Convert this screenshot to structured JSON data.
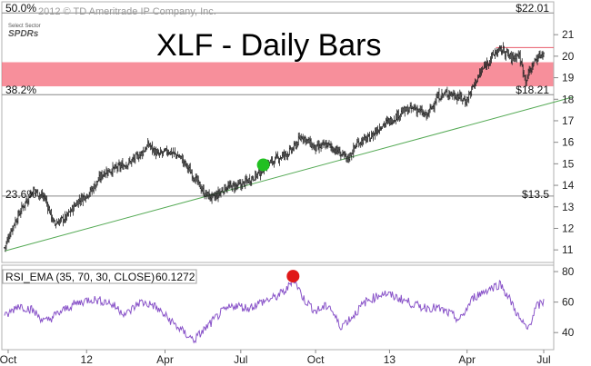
{
  "copyright": "2012 © TD Ameritrade IP Company, Inc.",
  "logo": {
    "line1": "Select Sector",
    "line2": "SPDRs"
  },
  "title": "XLF - Daily Bars",
  "rsi_label": "RSI_EMA (35, 70, 30, CLOSE)",
  "rsi_value": "60.1272",
  "colors": {
    "price": "#222222",
    "trendline": "#55aa55",
    "band": "#f46a7a",
    "resistance": "#e85a6a",
    "rsi": "#8a55c9",
    "green_dot": "#22c022",
    "red_dot": "#e01818",
    "hline": "#888888"
  },
  "chart_data": [
    {
      "type": "line",
      "subtype": "ohlc-bars",
      "title": "XLF - Daily Bars",
      "ylim": [
        10.5,
        22.4
      ],
      "y_ticks": [
        11,
        12,
        13,
        14,
        15,
        16,
        17,
        18,
        19,
        20,
        21
      ],
      "x_ticks": [
        "Oct",
        "12",
        "Apr",
        "Jul",
        "Oct",
        "13",
        "Apr",
        "Jul"
      ],
      "x_tick_index": [
        4,
        91,
        178,
        262,
        345,
        427,
        513,
        598
      ],
      "grid": false,
      "fib_levels": [
        {
          "label": "50.0%",
          "price_label": "$22.01",
          "value": 22.01
        },
        {
          "label": "38.2%",
          "price_label": "$18.21",
          "value": 18.21
        },
        {
          "label": "23.6%",
          "price_label": "$13.5",
          "value": 13.5
        }
      ],
      "resistance_band": [
        18.6,
        19.72
      ],
      "resistance_line": 20.4,
      "trendline": {
        "from": [
          "Oct",
          10.95
        ],
        "to": [
          "Jul",
          17.65
        ]
      },
      "marker": {
        "x": 287,
        "y": 14.95,
        "color": "green"
      },
      "close_anchors": [
        [
          0,
          11.1
        ],
        [
          8,
          12.0
        ],
        [
          20,
          13.0
        ],
        [
          32,
          13.8
        ],
        [
          45,
          13.4
        ],
        [
          55,
          12.2
        ],
        [
          68,
          12.5
        ],
        [
          82,
          13.3
        ],
        [
          95,
          13.7
        ],
        [
          110,
          14.6
        ],
        [
          125,
          14.8
        ],
        [
          140,
          15.1
        ],
        [
          152,
          15.5
        ],
        [
          160,
          15.9
        ],
        [
          170,
          15.4
        ],
        [
          182,
          15.6
        ],
        [
          195,
          15.3
        ],
        [
          210,
          14.4
        ],
        [
          222,
          13.6
        ],
        [
          232,
          13.4
        ],
        [
          245,
          13.9
        ],
        [
          262,
          14.0
        ],
        [
          280,
          14.5
        ],
        [
          292,
          15.0
        ],
        [
          305,
          15.3
        ],
        [
          318,
          15.6
        ],
        [
          330,
          16.3
        ],
        [
          345,
          15.7
        ],
        [
          358,
          15.9
        ],
        [
          372,
          15.5
        ],
        [
          380,
          15.2
        ],
        [
          392,
          16.0
        ],
        [
          405,
          16.2
        ],
        [
          418,
          16.8
        ],
        [
          428,
          17.0
        ],
        [
          440,
          17.4
        ],
        [
          455,
          17.6
        ],
        [
          468,
          17.2
        ],
        [
          480,
          18.1
        ],
        [
          492,
          18.3
        ],
        [
          505,
          18.1
        ],
        [
          512,
          17.9
        ],
        [
          522,
          18.8
        ],
        [
          535,
          19.7
        ],
        [
          545,
          20.2
        ],
        [
          553,
          20.3
        ],
        [
          562,
          19.9
        ],
        [
          570,
          20.1
        ],
        [
          578,
          18.9
        ],
        [
          588,
          19.8
        ],
        [
          598,
          20.2
        ]
      ]
    },
    {
      "type": "line",
      "title": "RSI_EMA (35, 70, 30, CLOSE)",
      "last_value": 60.1272,
      "ylim": [
        30,
        83
      ],
      "y_ticks": [
        40,
        60,
        80
      ],
      "x_ticks": [
        "Oct",
        "12",
        "Apr",
        "Jul",
        "Oct",
        "13",
        "Apr",
        "Jul"
      ],
      "marker": {
        "x": 320,
        "y": 77,
        "color": "red"
      },
      "anchors": [
        [
          0,
          50
        ],
        [
          15,
          58
        ],
        [
          30,
          55
        ],
        [
          45,
          47
        ],
        [
          58,
          52
        ],
        [
          75,
          58
        ],
        [
          95,
          62
        ],
        [
          115,
          60
        ],
        [
          135,
          52
        ],
        [
          150,
          60
        ],
        [
          165,
          58
        ],
        [
          180,
          50
        ],
        [
          195,
          42
        ],
        [
          210,
          35
        ],
        [
          225,
          44
        ],
        [
          240,
          53
        ],
        [
          255,
          58
        ],
        [
          270,
          56
        ],
        [
          285,
          60
        ],
        [
          300,
          63
        ],
        [
          313,
          68
        ],
        [
          320,
          76
        ],
        [
          332,
          62
        ],
        [
          345,
          54
        ],
        [
          360,
          58
        ],
        [
          372,
          44
        ],
        [
          385,
          50
        ],
        [
          400,
          60
        ],
        [
          420,
          66
        ],
        [
          440,
          62
        ],
        [
          460,
          57
        ],
        [
          480,
          56
        ],
        [
          495,
          52
        ],
        [
          505,
          48
        ],
        [
          520,
          63
        ],
        [
          535,
          68
        ],
        [
          550,
          72
        ],
        [
          562,
          60
        ],
        [
          572,
          48
        ],
        [
          580,
          42
        ],
        [
          590,
          57
        ],
        [
          598,
          60
        ]
      ]
    }
  ]
}
